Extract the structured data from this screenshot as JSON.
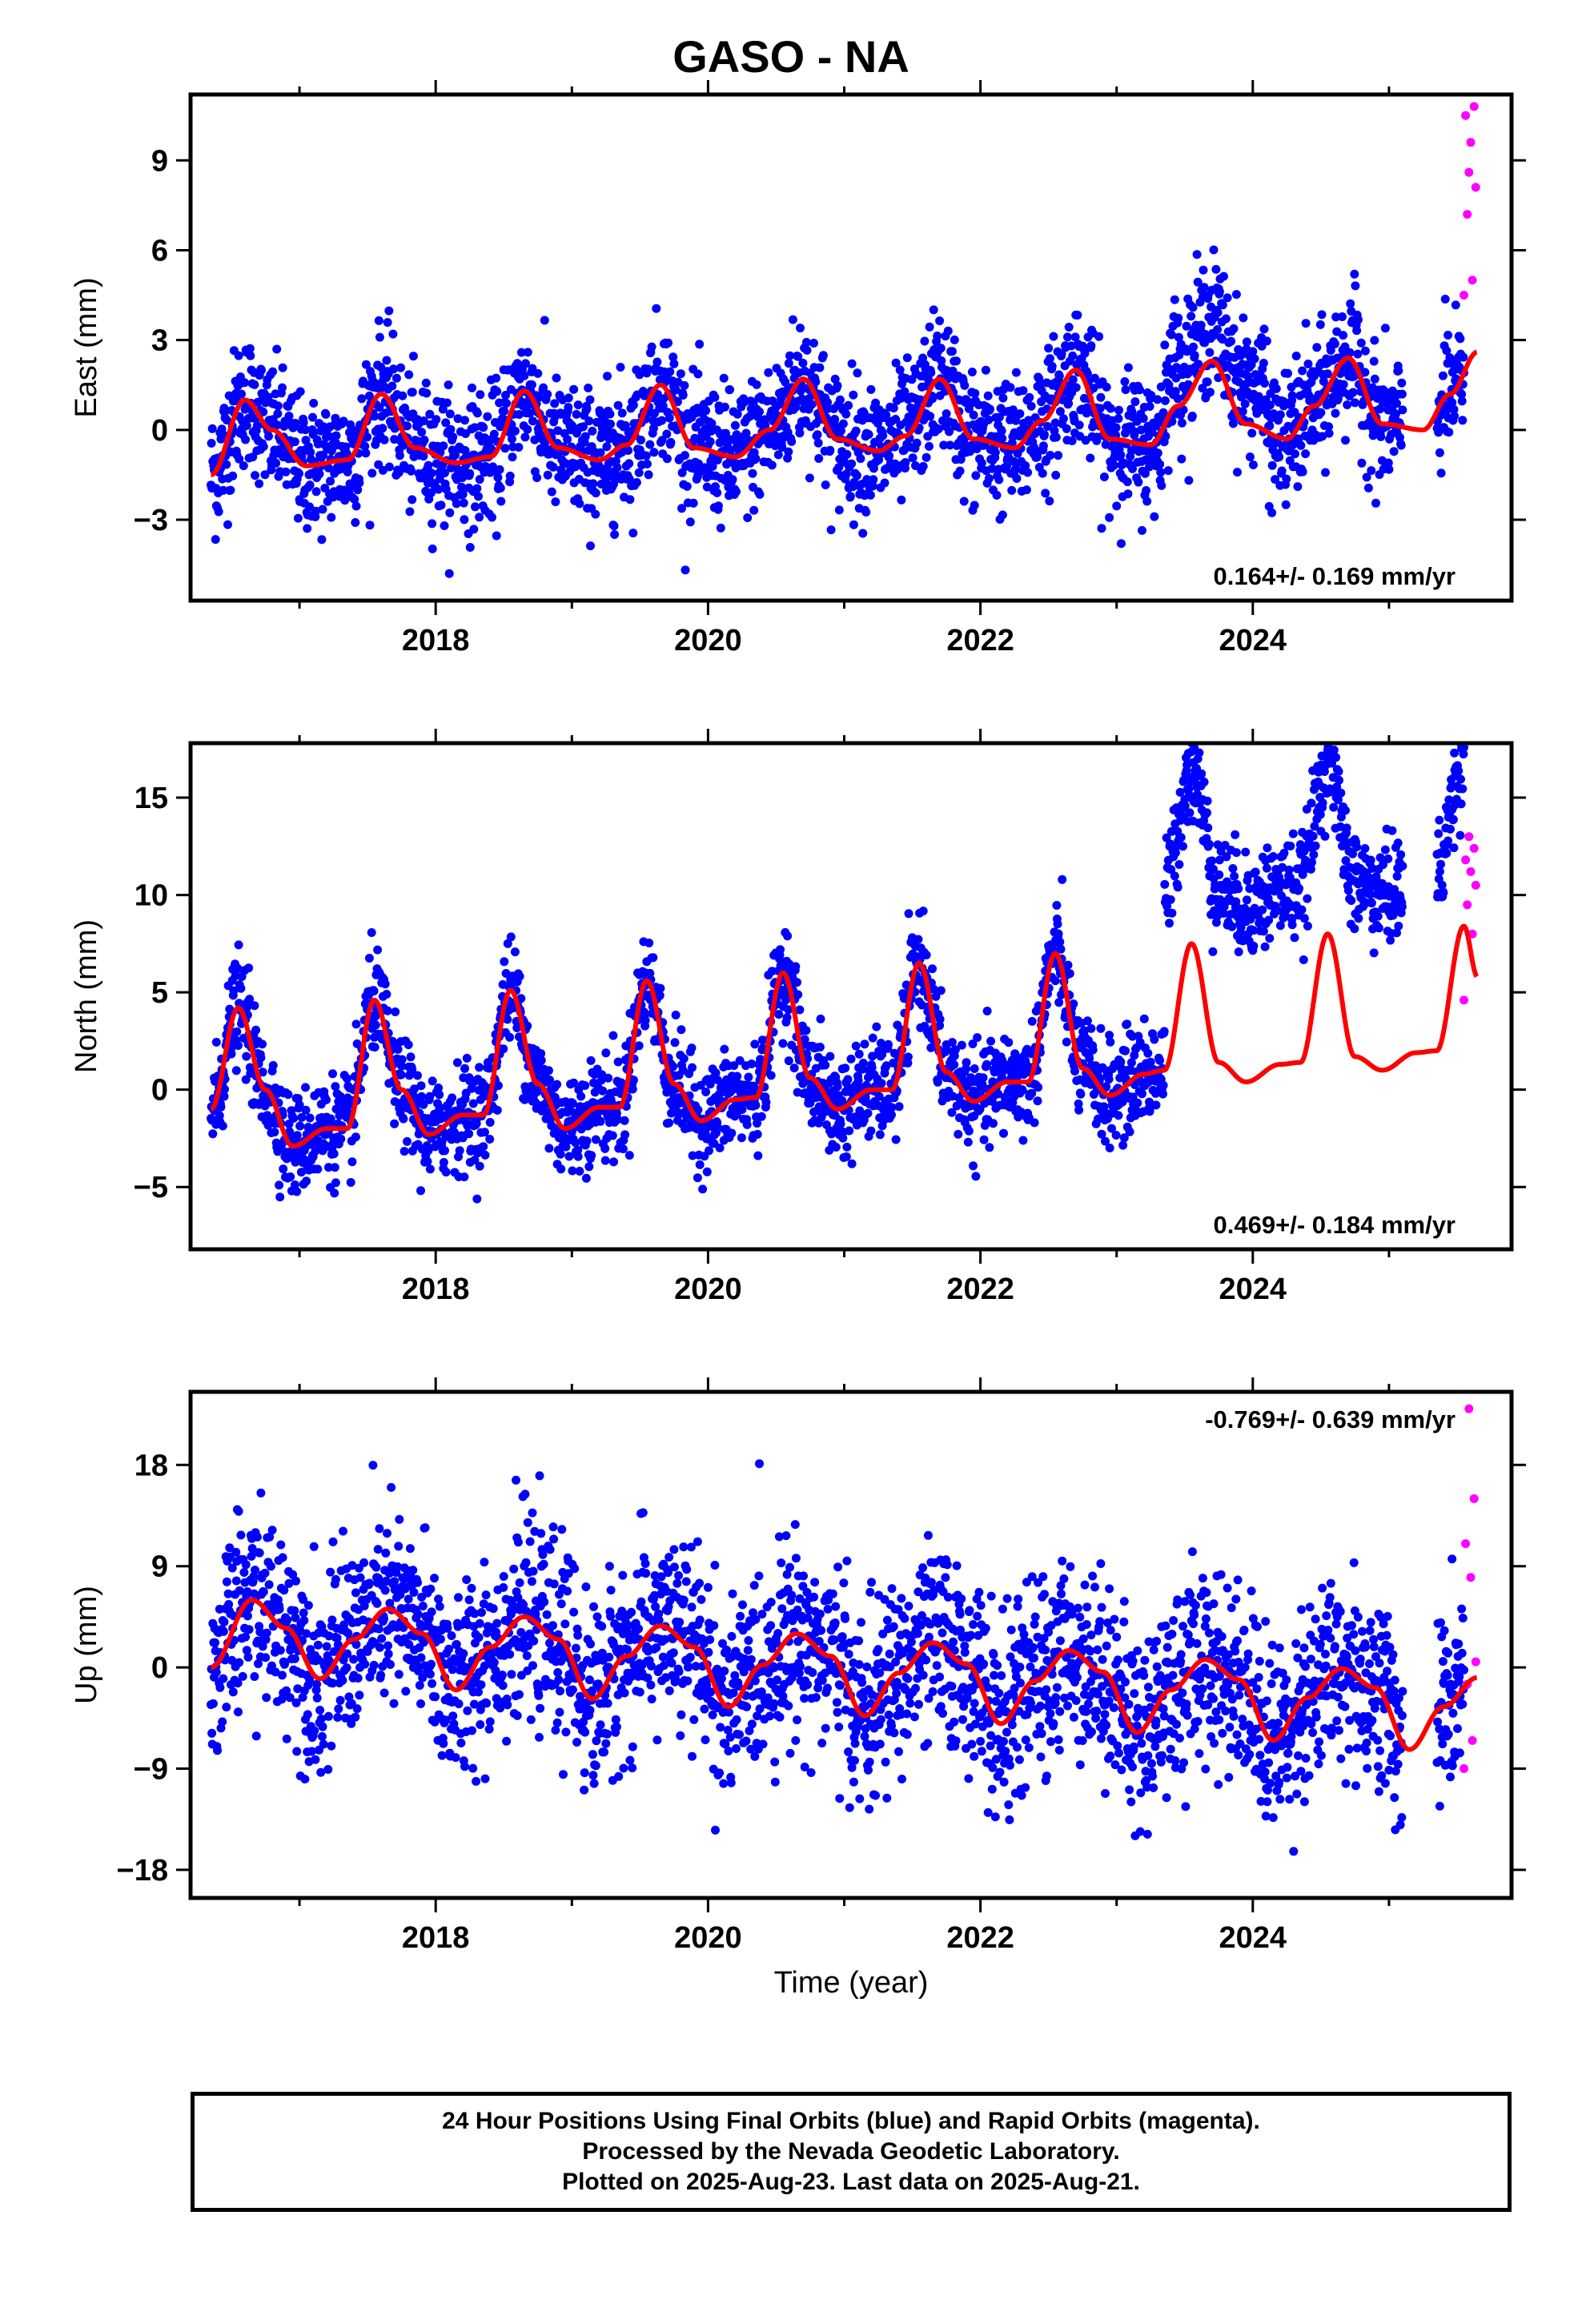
{
  "title": "GASO - NA",
  "footer_lines": [
    "24 Hour Positions Using Final Orbits (blue) and Rapid Orbits (magenta).",
    "Processed by the Nevada Geodetic Laboratory.",
    "Plotted on 2025-Aug-23. Last data on 2025-Aug-21."
  ],
  "colors": {
    "final": "#0000ff",
    "rapid": "#ff00ff",
    "model": "#ff0000",
    "frame": "#000000"
  },
  "chart_data": [
    {
      "type": "scatter",
      "ylabel": "East (mm)",
      "xlabel": "",
      "rate_label": "0.164+/- 0.169 mm/yr",
      "xlim": [
        2016.2,
        2025.9
      ],
      "ylim": [
        -5.7,
        11.2
      ],
      "x_ticks": [
        2018,
        2020,
        2022,
        2024
      ],
      "y_ticks": [
        -3,
        0,
        3,
        6,
        9
      ],
      "y_tick_labels": [
        "−3",
        "0",
        "3",
        "6",
        "9"
      ],
      "start": 2016.35,
      "gap": [
        2025.1,
        2025.35
      ],
      "end": 2025.55,
      "rapid_start": 2025.55,
      "rapid_end": 2025.65,
      "model": {
        "knots": [
          [
            2016.35,
            -1.5
          ],
          [
            2016.6,
            1.0
          ],
          [
            2016.8,
            0.0
          ],
          [
            2017.05,
            -1.2
          ],
          [
            2017.35,
            -1.0
          ],
          [
            2017.6,
            1.2
          ],
          [
            2017.85,
            -0.6
          ],
          [
            2018.15,
            -1.1
          ],
          [
            2018.4,
            -0.9
          ],
          [
            2018.65,
            1.3
          ],
          [
            2018.9,
            -0.6
          ],
          [
            2019.2,
            -1.0
          ],
          [
            2019.4,
            -0.5
          ],
          [
            2019.65,
            1.5
          ],
          [
            2019.9,
            -0.6
          ],
          [
            2020.2,
            -0.9
          ],
          [
            2020.45,
            0.0
          ],
          [
            2020.7,
            1.7
          ],
          [
            2020.95,
            -0.3
          ],
          [
            2021.25,
            -0.7
          ],
          [
            2021.45,
            -0.2
          ],
          [
            2021.7,
            1.7
          ],
          [
            2021.95,
            -0.3
          ],
          [
            2022.25,
            -0.6
          ],
          [
            2022.45,
            0.3
          ],
          [
            2022.7,
            2.0
          ],
          [
            2022.95,
            -0.3
          ],
          [
            2023.25,
            -0.5
          ],
          [
            2023.45,
            0.8
          ],
          [
            2023.7,
            2.3
          ],
          [
            2023.95,
            0.2
          ],
          [
            2024.25,
            -0.3
          ],
          [
            2024.45,
            0.8
          ],
          [
            2024.7,
            2.4
          ],
          [
            2024.95,
            0.2
          ],
          [
            2025.25,
            0.0
          ],
          [
            2025.45,
            1.2
          ],
          [
            2025.65,
            2.6
          ]
        ],
        "values_note": ""
      },
      "scatter_offsets": [
        [
          2023.35,
          2024.1,
          1.3
        ]
      ],
      "noise": 1.1,
      "rapid_values": [
        4.5,
        5.0,
        7.2,
        8.1,
        9.6,
        10.5,
        10.8,
        8.6
      ]
    },
    {
      "type": "scatter",
      "ylabel": "North (mm)",
      "xlabel": "",
      "rate_label": "0.469+/- 0.184 mm/yr",
      "xlim": [
        2016.2,
        2025.9
      ],
      "ylim": [
        -8.2,
        17.8
      ],
      "x_ticks": [
        2018,
        2020,
        2022,
        2024
      ],
      "y_ticks": [
        -5,
        0,
        5,
        10,
        15
      ],
      "y_tick_labels": [
        "−5",
        "0",
        "5",
        "10",
        "15"
      ],
      "start": 2016.35,
      "gap": [
        2025.1,
        2025.35
      ],
      "end": 2025.55,
      "rapid_start": 2025.55,
      "rapid_end": 2025.65,
      "model": {
        "knots": [
          [
            2016.35,
            -1.0
          ],
          [
            2016.55,
            4.2
          ],
          [
            2016.75,
            0.0
          ],
          [
            2016.95,
            -2.9
          ],
          [
            2017.2,
            -2.0
          ],
          [
            2017.35,
            -2.0
          ],
          [
            2017.55,
            4.6
          ],
          [
            2017.75,
            0.0
          ],
          [
            2017.95,
            -2.3
          ],
          [
            2018.2,
            -1.3
          ],
          [
            2018.35,
            -1.3
          ],
          [
            2018.55,
            5.1
          ],
          [
            2018.75,
            0.3
          ],
          [
            2018.95,
            -2.0
          ],
          [
            2019.2,
            -0.9
          ],
          [
            2019.35,
            -0.9
          ],
          [
            2019.55,
            5.6
          ],
          [
            2019.75,
            0.3
          ],
          [
            2019.95,
            -1.6
          ],
          [
            2020.2,
            -0.5
          ],
          [
            2020.35,
            -0.4
          ],
          [
            2020.55,
            6.0
          ],
          [
            2020.75,
            0.6
          ],
          [
            2020.95,
            -1.0
          ],
          [
            2021.2,
            0.0
          ],
          [
            2021.35,
            0.0
          ],
          [
            2021.55,
            6.5
          ],
          [
            2021.75,
            0.9
          ],
          [
            2021.95,
            -0.6
          ],
          [
            2022.2,
            0.4
          ],
          [
            2022.35,
            0.4
          ],
          [
            2022.55,
            7.0
          ],
          [
            2022.75,
            1.1
          ],
          [
            2022.95,
            -0.3
          ],
          [
            2023.2,
            0.8
          ],
          [
            2023.35,
            1.0
          ],
          [
            2023.55,
            7.5
          ],
          [
            2023.75,
            1.4
          ],
          [
            2023.95,
            0.4
          ],
          [
            2024.2,
            1.3
          ],
          [
            2024.35,
            1.4
          ],
          [
            2024.55,
            8.0
          ],
          [
            2024.75,
            1.7
          ],
          [
            2024.95,
            1.0
          ],
          [
            2025.2,
            1.9
          ],
          [
            2025.35,
            2.0
          ],
          [
            2025.55,
            8.4
          ],
          [
            2025.65,
            5.8
          ]
        ]
      },
      "scatter_offsets": [
        [
          2023.35,
          2025.9,
          9.0
        ]
      ],
      "noise": 1.3,
      "rapid_values": [
        4.6,
        8.0,
        9.5,
        10.5,
        11.2,
        11.8,
        12.4,
        13.0
      ]
    },
    {
      "type": "scatter",
      "ylabel": "Up (mm)",
      "xlabel": "Time (year)",
      "rate_label": "-0.769+/- 0.639 mm/yr",
      "xlim": [
        2016.2,
        2025.9
      ],
      "ylim": [
        -20.5,
        24.5
      ],
      "x_ticks": [
        2018,
        2020,
        2022,
        2024
      ],
      "y_ticks": [
        -18,
        -9,
        0,
        9,
        18
      ],
      "y_tick_labels": [
        "−18",
        "−9",
        "0",
        "9",
        "18"
      ],
      "start": 2016.35,
      "gap": [
        2025.1,
        2025.35
      ],
      "end": 2025.55,
      "rapid_start": 2025.55,
      "rapid_end": 2025.65,
      "model": {
        "knots": [
          [
            2016.35,
            0.0
          ],
          [
            2016.65,
            6.0
          ],
          [
            2016.9,
            3.5
          ],
          [
            2017.15,
            -1.0
          ],
          [
            2017.4,
            2.5
          ],
          [
            2017.65,
            5.2
          ],
          [
            2017.9,
            3.0
          ],
          [
            2018.15,
            -2.0
          ],
          [
            2018.4,
            1.8
          ],
          [
            2018.65,
            4.5
          ],
          [
            2018.9,
            2.5
          ],
          [
            2019.15,
            -2.8
          ],
          [
            2019.4,
            1.0
          ],
          [
            2019.65,
            3.7
          ],
          [
            2019.9,
            1.8
          ],
          [
            2020.15,
            -3.5
          ],
          [
            2020.4,
            0.2
          ],
          [
            2020.65,
            3.0
          ],
          [
            2020.9,
            1.0
          ],
          [
            2021.15,
            -4.3
          ],
          [
            2021.4,
            -0.5
          ],
          [
            2021.65,
            2.2
          ],
          [
            2021.9,
            0.3
          ],
          [
            2022.15,
            -5.0
          ],
          [
            2022.4,
            -1.2
          ],
          [
            2022.65,
            1.5
          ],
          [
            2022.9,
            -0.4
          ],
          [
            2023.15,
            -5.8
          ],
          [
            2023.4,
            -2.0
          ],
          [
            2023.65,
            0.7
          ],
          [
            2023.9,
            -1.1
          ],
          [
            2024.15,
            -6.5
          ],
          [
            2024.4,
            -2.7
          ],
          [
            2024.65,
            -0.1
          ],
          [
            2024.9,
            -1.8
          ],
          [
            2025.15,
            -7.3
          ],
          [
            2025.4,
            -3.5
          ],
          [
            2025.65,
            -0.9
          ]
        ]
      },
      "scatter_offsets": [],
      "noise": 4.2,
      "rapid_values": [
        -9.0,
        -6.5,
        -1.5,
        0.5,
        8.0,
        11.0,
        15.0,
        23.0
      ]
    }
  ]
}
